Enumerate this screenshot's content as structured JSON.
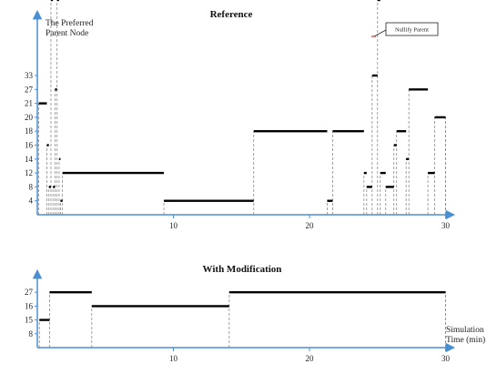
{
  "chart_data": [
    {
      "type": "line",
      "title": "Reference",
      "ylabel": "The Preferred Parent Node",
      "xlabel": "",
      "y_ticks": [
        "4",
        "8",
        "12",
        "14",
        "16",
        "18",
        "20",
        "21",
        "27",
        "33"
      ],
      "x_ticks": [
        "10",
        "20",
        "30"
      ],
      "xlim": [
        0,
        30.5
      ],
      "annotation": "Nullify Parent",
      "steps": [
        {
          "x": [
            0.1,
            0.7
          ],
          "y": "21"
        },
        {
          "x": [
            0.7,
            0.85
          ],
          "y": "16"
        },
        {
          "x": [
            0.85,
            1.0
          ],
          "y": "8"
        },
        {
          "x": [
            1.0,
            1.15
          ],
          "y": "15"
        },
        {
          "x": [
            1.15,
            1.3
          ],
          "y": "8"
        },
        {
          "x": [
            1.3,
            1.45
          ],
          "y": "27"
        },
        {
          "x": [
            1.45,
            1.6
          ],
          "y": "19"
        },
        {
          "x": [
            1.6,
            1.7
          ],
          "y": "14"
        },
        {
          "x": [
            1.7,
            1.85
          ],
          "y": "4"
        },
        {
          "x": [
            1.85,
            9.3
          ],
          "y": "12"
        },
        {
          "x": [
            9.3,
            15.9
          ],
          "y": "4"
        },
        {
          "x": [
            15.9,
            21.3
          ],
          "y": "18"
        },
        {
          "x": [
            21.3,
            21.7
          ],
          "y": "4"
        },
        {
          "x": [
            21.7,
            24.0
          ],
          "y": "18"
        },
        {
          "x": [
            24.0,
            24.2
          ],
          "y": "12"
        },
        {
          "x": [
            24.2,
            24.6
          ],
          "y": "8"
        },
        {
          "x": [
            24.6,
            25.0
          ],
          "y": "33"
        },
        {
          "x": [
            25.0,
            25.2
          ],
          "y": "25"
        },
        {
          "x": [
            25.2,
            25.6
          ],
          "y": "12"
        },
        {
          "x": [
            25.6,
            26.2
          ],
          "y": "8"
        },
        {
          "x": [
            26.2,
            26.4
          ],
          "y": "16"
        },
        {
          "x": [
            26.4,
            27.1
          ],
          "y": "18"
        },
        {
          "x": [
            27.1,
            27.3
          ],
          "y": "14"
        },
        {
          "x": [
            27.3,
            28.7
          ],
          "y": "27"
        },
        {
          "x": [
            28.7,
            29.2
          ],
          "y": "12"
        },
        {
          "x": [
            29.2,
            30.0
          ],
          "y": "20"
        }
      ]
    },
    {
      "type": "line",
      "title": "With Modification",
      "xlabel": "Simulation Time (min)",
      "ylabel": "",
      "y_ticks": [
        "8",
        "15",
        "16",
        "27"
      ],
      "x_ticks": [
        "10",
        "20",
        "30"
      ],
      "xlim": [
        0,
        30.5
      ],
      "steps": [
        {
          "x": [
            0.15,
            0.9
          ],
          "y": "15"
        },
        {
          "x": [
            0.9,
            4.0
          ],
          "y": "27"
        },
        {
          "x": [
            4.0,
            14.1
          ],
          "y": "16"
        },
        {
          "x": [
            14.1,
            30.0
          ],
          "y": "27"
        }
      ]
    }
  ]
}
